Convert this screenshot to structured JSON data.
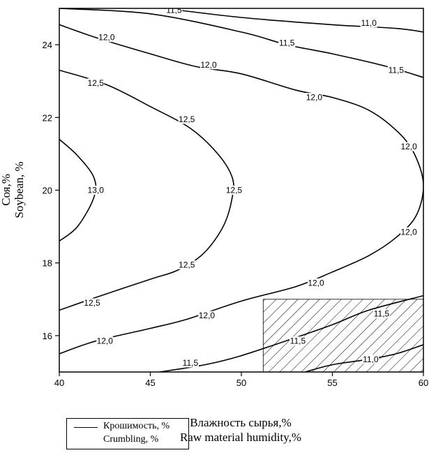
{
  "chart_data": {
    "type": "contour",
    "xlabel_lines": [
      "Влажность сырья,%",
      "Raw material humidity,%"
    ],
    "ylabel_lines": [
      "Соя,%",
      "Soybean, %"
    ],
    "xlim": [
      40,
      60
    ],
    "ylim": [
      15,
      25
    ],
    "x_ticks": [
      40,
      45,
      50,
      55,
      60
    ],
    "y_ticks": [
      16,
      18,
      20,
      22,
      24
    ],
    "series_color": "#000000",
    "contours": [
      {
        "level": "11,0",
        "points": [
          [
            45.8,
            25
          ],
          [
            50,
            24.75
          ],
          [
            55,
            24.55
          ],
          [
            58.5,
            24.45
          ],
          [
            60,
            24.35
          ]
        ],
        "label_at": [
          [
            57,
            24.6
          ]
        ]
      },
      {
        "level": "11,5",
        "points": [
          [
            40,
            25
          ],
          [
            45,
            24.85
          ],
          [
            50,
            24.35
          ],
          [
            52.5,
            24.0
          ],
          [
            55,
            23.75
          ],
          [
            58,
            23.4
          ],
          [
            60,
            23.1
          ]
        ],
        "label_at": [
          [
            46.3,
            24.95
          ],
          [
            52.5,
            24.05
          ],
          [
            58.5,
            23.3
          ]
        ]
      },
      {
        "level": "12,0",
        "points": [
          [
            40,
            24.55
          ],
          [
            42,
            24.2
          ],
          [
            45,
            23.75
          ],
          [
            47.5,
            23.4
          ],
          [
            50,
            23.2
          ],
          [
            53,
            22.75
          ],
          [
            55,
            22.55
          ],
          [
            57,
            22.2
          ],
          [
            58.6,
            21.6
          ],
          [
            59.5,
            21.0
          ],
          [
            60,
            20.15
          ],
          [
            59.6,
            19.3
          ],
          [
            58.5,
            18.7
          ],
          [
            57,
            18.2
          ],
          [
            55,
            17.75
          ],
          [
            53,
            17.35
          ],
          [
            50,
            16.95
          ],
          [
            47,
            16.45
          ],
          [
            45,
            16.2
          ],
          [
            42,
            15.85
          ],
          [
            40,
            15.5
          ]
        ],
        "label_at": [
          [
            42.6,
            24.2
          ],
          [
            48.2,
            23.45
          ],
          [
            54,
            22.55
          ],
          [
            59.2,
            21.2
          ],
          [
            59.2,
            18.85
          ],
          [
            54.1,
            17.45
          ],
          [
            48.1,
            16.55
          ],
          [
            42.5,
            15.85
          ]
        ]
      },
      {
        "level": "12,5",
        "points": [
          [
            40,
            23.3
          ],
          [
            42.6,
            22.9
          ],
          [
            45,
            22.3
          ],
          [
            47.2,
            21.7
          ],
          [
            48.7,
            21.0
          ],
          [
            49.5,
            20.35
          ],
          [
            49.5,
            19.8
          ],
          [
            49.0,
            19.0
          ],
          [
            47.9,
            18.25
          ],
          [
            46.5,
            17.8
          ],
          [
            45,
            17.55
          ],
          [
            42,
            17.05
          ],
          [
            40,
            16.7
          ]
        ],
        "label_at": [
          [
            42.0,
            22.95
          ],
          [
            47.0,
            21.95
          ],
          [
            49.6,
            20.0
          ],
          [
            47.0,
            17.95
          ],
          [
            41.8,
            16.9
          ]
        ]
      },
      {
        "level": "13,0",
        "points": [
          [
            40,
            21.4
          ],
          [
            41,
            20.95
          ],
          [
            41.9,
            20.35
          ],
          [
            41.9,
            19.8
          ],
          [
            41,
            19.0
          ],
          [
            40,
            18.6
          ]
        ],
        "label_at": [
          [
            42.0,
            20.0
          ]
        ]
      },
      {
        "level": "11,5",
        "points": [
          [
            45.5,
            15
          ],
          [
            48,
            15.2
          ],
          [
            50,
            15.45
          ],
          [
            53,
            15.95
          ],
          [
            55,
            16.3
          ],
          [
            57,
            16.7
          ],
          [
            60,
            17.1
          ]
        ],
        "label_at": [
          [
            47.2,
            15.25
          ],
          [
            53.1,
            15.85
          ],
          [
            57.7,
            16.6
          ]
        ]
      },
      {
        "level": "11,0",
        "points": [
          [
            53.5,
            15
          ],
          [
            55,
            15.2
          ],
          [
            57,
            15.35
          ],
          [
            58.5,
            15.5
          ],
          [
            60,
            15.75
          ]
        ],
        "label_at": [
          [
            57.1,
            15.35
          ]
        ]
      }
    ],
    "region": {
      "type": "hatched",
      "x": [
        51.2,
        60
      ],
      "y": [
        15,
        17
      ]
    },
    "legend": {
      "lines": [
        "Крошимость, %",
        "Crumbling, %"
      ],
      "position": "bottom-left"
    }
  }
}
